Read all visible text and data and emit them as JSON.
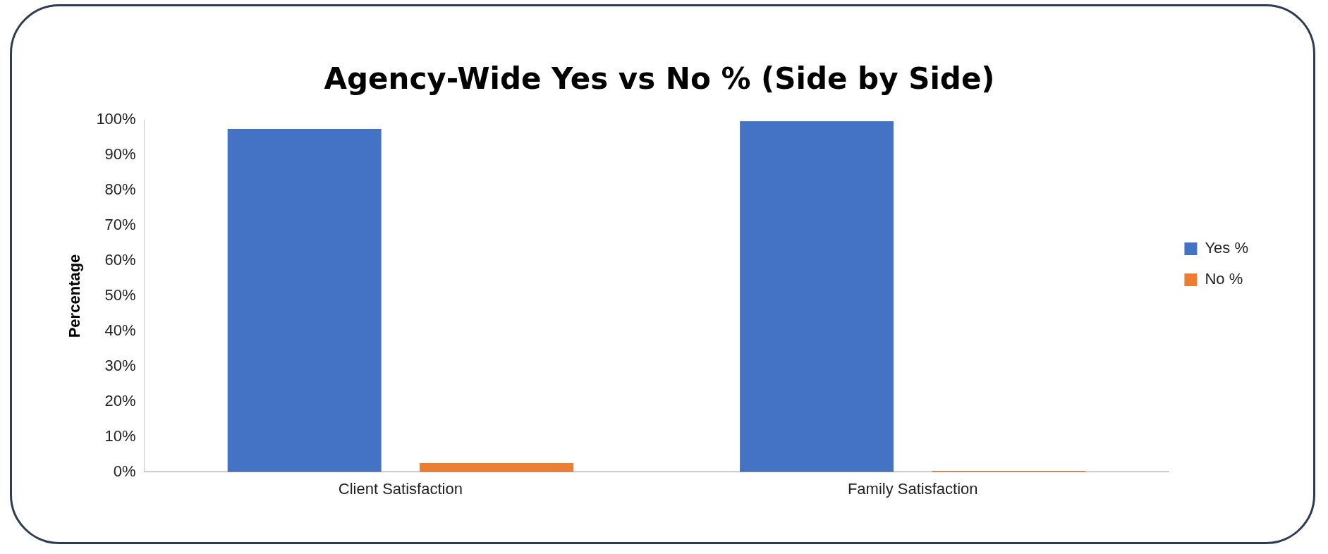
{
  "chart_data": {
    "type": "bar",
    "title": "Agency-Wide Yes vs No % (Side by Side)",
    "ylabel": "Percentage",
    "categories": [
      "Client Satisfaction",
      "Family Satisfaction"
    ],
    "series": [
      {
        "name": "Yes %",
        "color": "#4472c4",
        "values": [
          97.5,
          99.7
        ]
      },
      {
        "name": "No %",
        "color": "#ed7d31",
        "values": [
          2.5,
          0.3
        ]
      }
    ],
    "ylim": [
      0,
      100
    ],
    "yticks": [
      {
        "value": 0,
        "label": "0%"
      },
      {
        "value": 10,
        "label": "10%"
      },
      {
        "value": 20,
        "label": "20%"
      },
      {
        "value": 30,
        "label": "30%"
      },
      {
        "value": 40,
        "label": "40%"
      },
      {
        "value": 50,
        "label": "50%"
      },
      {
        "value": 60,
        "label": "60%"
      },
      {
        "value": 70,
        "label": "70%"
      },
      {
        "value": 80,
        "label": "80%"
      },
      {
        "value": 90,
        "label": "90%"
      },
      {
        "value": 100,
        "label": "100%"
      }
    ],
    "grid": false,
    "legend": "right"
  }
}
